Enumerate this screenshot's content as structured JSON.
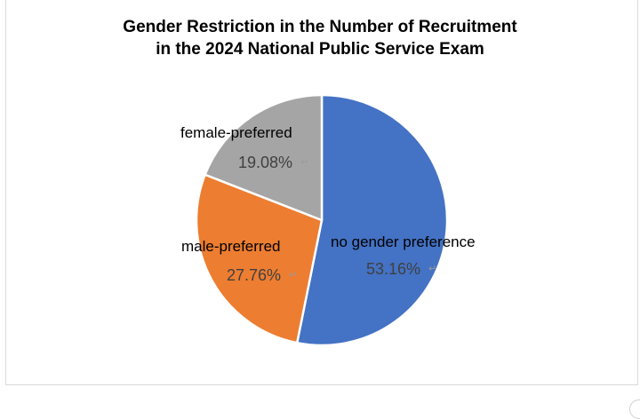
{
  "chart_data": {
    "type": "pie",
    "title_lines": [
      "Gender Restriction in the Number of Recruitment",
      "in the 2024 National Public Service Exam"
    ],
    "slices": [
      {
        "label": "no gender preference",
        "value": 53.16,
        "display": "53.16%",
        "color": "#4472C4"
      },
      {
        "label": "male-preferred",
        "value": 27.76,
        "display": "27.76%",
        "color": "#ED7D31"
      },
      {
        "label": "female-preferred",
        "value": 19.08,
        "display": "19.08%",
        "color": "#A5A5A5"
      }
    ],
    "start_angle": "12 o'clock",
    "direction": "clockwise",
    "legend": "none",
    "labels": "outside-end"
  }
}
